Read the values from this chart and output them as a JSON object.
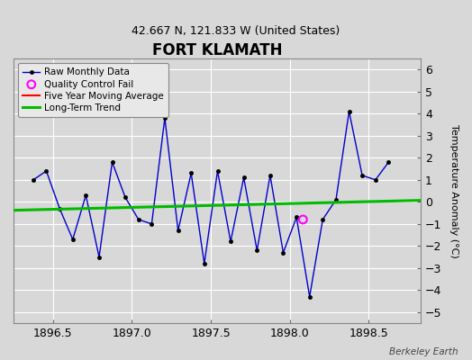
{
  "title": "FORT KLAMATH",
  "subtitle": "42.667 N, 121.833 W (United States)",
  "ylabel": "Temperature Anomaly (°C)",
  "watermark": "Berkeley Earth",
  "xlim": [
    1896.25,
    1898.83
  ],
  "ylim": [
    -5.5,
    6.5
  ],
  "xticks": [
    1896.5,
    1897.0,
    1897.5,
    1898.0,
    1898.5
  ],
  "yticks": [
    -5,
    -4,
    -3,
    -2,
    -1,
    0,
    1,
    2,
    3,
    4,
    5,
    6
  ],
  "bg_color": "#d8d8d8",
  "plot_bg_color": "#d8d8d8",
  "raw_x": [
    1896.375,
    1896.458,
    1896.542,
    1896.625,
    1896.708,
    1896.792,
    1896.875,
    1896.958,
    1897.042,
    1897.125,
    1897.208,
    1897.292,
    1897.375,
    1897.458,
    1897.542,
    1897.625,
    1897.708,
    1897.792,
    1897.875,
    1897.958,
    1898.042,
    1898.125,
    1898.208,
    1898.292,
    1898.375,
    1898.458,
    1898.542,
    1898.625
  ],
  "raw_y": [
    1.0,
    1.4,
    -0.3,
    -1.7,
    0.3,
    -2.5,
    1.8,
    0.2,
    -0.8,
    -1.0,
    3.8,
    -1.3,
    1.3,
    -2.8,
    1.4,
    -1.8,
    1.1,
    -2.2,
    1.2,
    -2.3,
    -0.7,
    -4.3,
    -0.8,
    0.1,
    4.1,
    1.2,
    1.0,
    1.8
  ],
  "qc_fail_x": [
    1898.083
  ],
  "qc_fail_y": [
    -0.8
  ],
  "trend_x": [
    1896.25,
    1898.83
  ],
  "trend_y": [
    -0.38,
    0.07
  ],
  "raw_color": "#0000cc",
  "raw_marker_color": "#000000",
  "qc_color": "#ff00ff",
  "trend_color": "#00bb00",
  "moving_avg_color": "#ff0000",
  "legend_bg": "#e8e8e8",
  "grid_color": "#ffffff",
  "title_fontsize": 12,
  "subtitle_fontsize": 9,
  "tick_fontsize": 9,
  "ylabel_fontsize": 8
}
